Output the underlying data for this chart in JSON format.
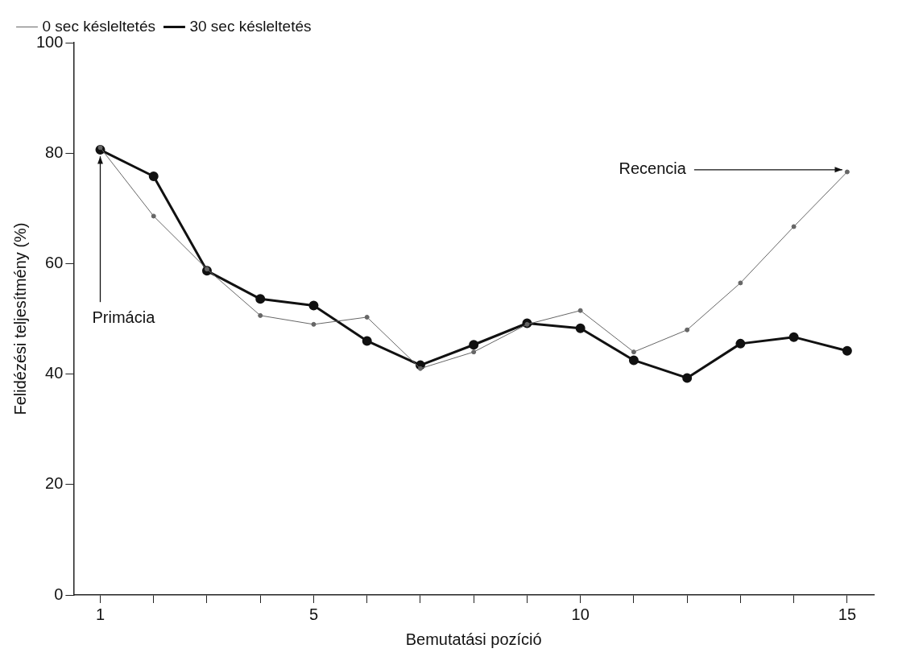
{
  "chart_data": {
    "type": "line",
    "xlabel": "Bemutatási pozíció",
    "ylabel": "Felidézési teljesítmény (%)",
    "x": [
      1,
      2,
      3,
      4,
      5,
      6,
      7,
      8,
      9,
      10,
      11,
      12,
      13,
      14,
      15
    ],
    "series": [
      {
        "name": "0 sec késleltetés",
        "color": "#666666",
        "values": [
          81,
          68.6,
          59,
          50.6,
          49,
          50.3,
          41,
          44,
          49,
          51.5,
          44,
          48,
          56.5,
          66.7,
          76.6
        ]
      },
      {
        "name": "30 sec késleltetés",
        "color": "#111111",
        "values": [
          80.6,
          75.8,
          58.7,
          53.6,
          52.4,
          46,
          41.6,
          45.3,
          49.2,
          48.3,
          42.5,
          39.3,
          45.5,
          46.7,
          44.2
        ]
      }
    ],
    "xlim": [
      0.5,
      15.5
    ],
    "ylim": [
      0,
      100
    ],
    "xticks": [
      1,
      {
        "value": 2,
        "label": null
      },
      {
        "value": 3,
        "label": null
      },
      {
        "value": 4,
        "label": null
      },
      5,
      {
        "value": 6,
        "label": null
      },
      {
        "value": 7,
        "label": null
      },
      {
        "value": 8,
        "label": null
      },
      {
        "value": 9,
        "label": null
      },
      10,
      {
        "value": 11,
        "label": null
      },
      {
        "value": 12,
        "label": null
      },
      {
        "value": 13,
        "label": null
      },
      {
        "value": 14,
        "label": null
      },
      15
    ],
    "yticks": [
      0,
      20,
      40,
      60,
      80,
      100
    ],
    "grid": false,
    "legend": "top left",
    "marker": "circle",
    "line_style": "solid",
    "annotations": [
      {
        "text": "Primácia",
        "x": 1,
        "y": 80
      },
      {
        "text": "Recencia",
        "x": 15,
        "y": 77
      }
    ]
  }
}
